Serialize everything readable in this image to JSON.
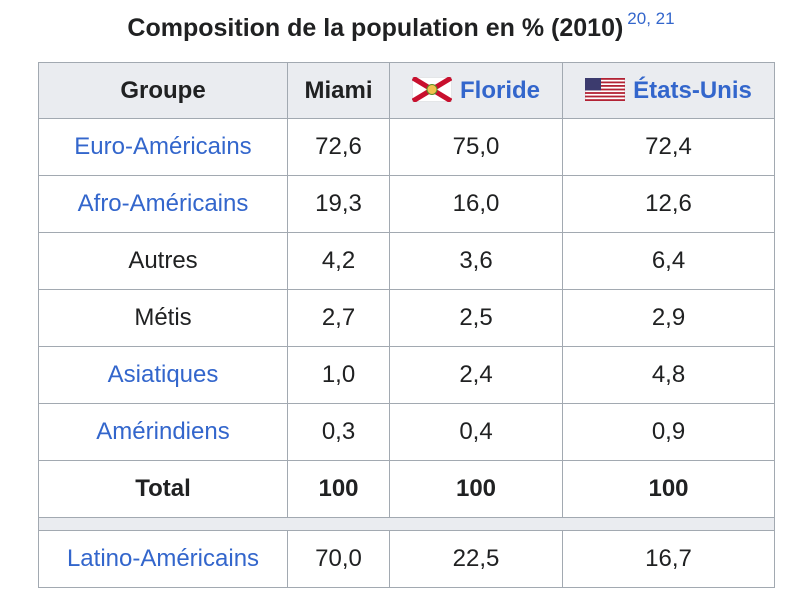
{
  "caption": {
    "title": "Composition de la population en % (2010)",
    "refs": "20, 21"
  },
  "header": {
    "groupe": "Groupe",
    "miami": "Miami",
    "floride": "Floride",
    "etats_unis": "États-Unis",
    "florida_flag_icon": "florida-flag-icon",
    "us_flag_icon": "us-flag-icon"
  },
  "rows": [
    {
      "label": "Euro-Américains",
      "miami": "72,6",
      "floride": "75,0",
      "etats_unis": "72,4",
      "link": true
    },
    {
      "label": "Afro-Américains",
      "miami": "19,3",
      "floride": "16,0",
      "etats_unis": "12,6",
      "link": true
    },
    {
      "label": "Autres",
      "miami": "4,2",
      "floride": "3,6",
      "etats_unis": "6,4",
      "link": false
    },
    {
      "label": "Métis",
      "miami": "2,7",
      "floride": "2,5",
      "etats_unis": "2,9",
      "link": false
    },
    {
      "label": "Asiatiques",
      "miami": "1,0",
      "floride": "2,4",
      "etats_unis": "4,8",
      "link": true
    },
    {
      "label": "Amérindiens",
      "miami": "0,3",
      "floride": "0,4",
      "etats_unis": "0,9",
      "link": true
    }
  ],
  "total": {
    "label": "Total",
    "miami": "100",
    "floride": "100",
    "etats_unis": "100"
  },
  "latino": {
    "label": "Latino-Américains",
    "miami": "70,0",
    "floride": "22,5",
    "etats_unis": "16,7"
  },
  "colors": {
    "link": "#3366cc",
    "header_bg": "#eaecf0",
    "border": "#a2a9b1"
  }
}
